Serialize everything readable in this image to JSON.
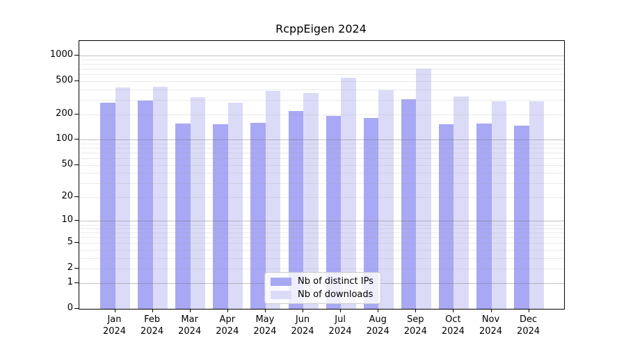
{
  "chart_data": {
    "type": "bar",
    "title": "RcppEigen 2024",
    "year_label": "2024",
    "categories": [
      "Jan",
      "Feb",
      "Mar",
      "Apr",
      "May",
      "Jun",
      "Jul",
      "Aug",
      "Sep",
      "Oct",
      "Nov",
      "Dec"
    ],
    "series": [
      {
        "name": "Nb of distinct IPs",
        "color": "#a8a8f4",
        "values": [
          275,
          295,
          158,
          155,
          160,
          220,
          195,
          182,
          305,
          155,
          158,
          148
        ]
      },
      {
        "name": "Nb of downloads",
        "color": "#dbdbf8",
        "values": [
          420,
          430,
          320,
          277,
          385,
          364,
          545,
          390,
          700,
          330,
          288,
          290
        ]
      }
    ],
    "yticks": [
      0,
      1,
      2,
      5,
      10,
      20,
      50,
      100,
      200,
      500,
      1000
    ],
    "scale": "log1p",
    "ylim": [
      0,
      1475
    ],
    "grid": "on",
    "legend_position": "lower-center",
    "colors": {
      "axis": "#000000",
      "grid_major": "#c8c8c8",
      "grid_minor": "#e8e8e8",
      "background": "#ffffff"
    }
  }
}
